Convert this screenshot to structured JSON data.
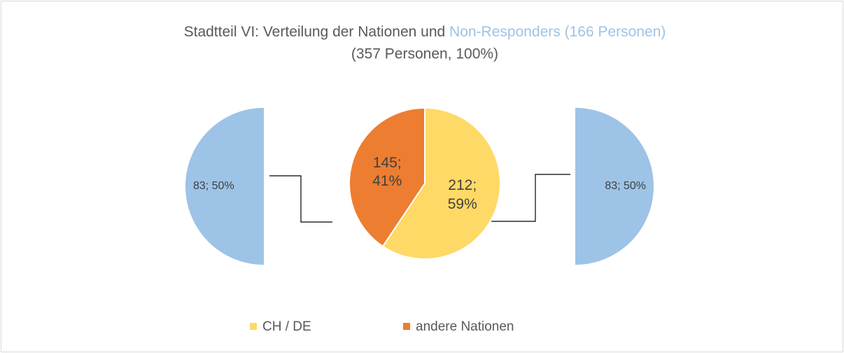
{
  "chart_data": {
    "type": "pie",
    "title": "Stadtteil VI: Verteilung der Nationen und ",
    "title_highlight": "Non-Responders (166 Personen)",
    "subtitle": "(357 Personen, 100%)",
    "categories": [
      "CH / DE",
      "andere Nationen"
    ],
    "values": [
      212,
      145
    ],
    "value_labels": [
      "212; 59%",
      "145; 41%"
    ],
    "colors": [
      "#ffd966",
      "#ed7d31"
    ],
    "side_series": {
      "color": "#9dc3e6",
      "values": [
        83,
        83
      ],
      "value_labels": [
        "83; 50%",
        "83; 50%"
      ]
    },
    "legend": "bottom"
  }
}
